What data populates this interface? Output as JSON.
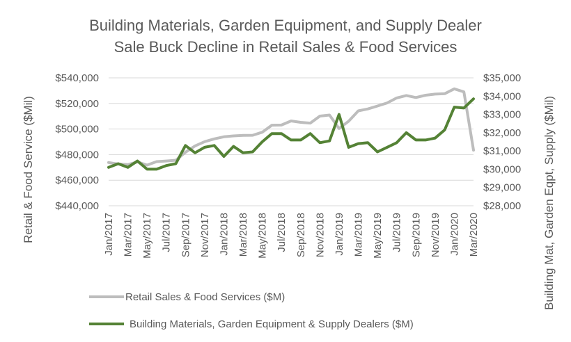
{
  "chart_data": {
    "type": "line",
    "title_line1": "Building Materials, Garden Equipment, and Supply Dealer",
    "title_line2": "Sale Buck Decline in Retail Sales & Food Services",
    "ylabel_left": "Retail & Food Service ($Mil)",
    "ylabel_right": "Building Mat, Garden Eqpt, Supply ($Mil)",
    "y_left_lim": [
      440000,
      540000
    ],
    "y_left_ticks": [
      "$440,000",
      "$460,000",
      "$480,000",
      "$500,000",
      "$520,000",
      "$540,000"
    ],
    "y_right_lim": [
      28000,
      35000
    ],
    "y_right_ticks": [
      "$28,000",
      "$29,000",
      "$30,000",
      "$31,000",
      "$32,000",
      "$33,000",
      "$34,000",
      "$35,000"
    ],
    "x": [
      "Jan/2017",
      "Feb/2017",
      "Mar/2017",
      "Apr/2017",
      "May/2017",
      "Jun/2017",
      "Jul/2017",
      "Aug/2017",
      "Sep/2017",
      "Oct/2017",
      "Nov/2017",
      "Dec/2017",
      "Jan/2018",
      "Feb/2018",
      "Mar/2018",
      "Apr/2018",
      "May/2018",
      "Jun/2018",
      "Jul/2018",
      "Aug/2018",
      "Sep/2018",
      "Oct/2018",
      "Nov/2018",
      "Dec/2018",
      "Jan/2019",
      "Feb/2019",
      "Mar/2019",
      "Apr/2019",
      "May/2019",
      "Jun/2019",
      "Jul/2019",
      "Aug/2019",
      "Sep/2019",
      "Oct/2019",
      "Nov/2019",
      "Dec/2019",
      "Jan/2020",
      "Feb/2020",
      "Mar/2020"
    ],
    "x_tick_labels": [
      "Jan/2017",
      "Mar/2017",
      "May/2017",
      "Jul/2017",
      "Sep/2017",
      "Nov/2017",
      "Jan/2018",
      "Mar/2018",
      "May/2018",
      "Jul/2018",
      "Sep/2018",
      "Nov/2018",
      "Jan/2019",
      "Mar/2019",
      "May/2019",
      "Jul/2019",
      "Sep/2019",
      "Nov/2019",
      "Jan/2020",
      "Mar/2020"
    ],
    "series": [
      {
        "name": "Retail Sales & Food Services ($M)",
        "axis": "left",
        "color": "#bdbdbd",
        "values": [
          473800,
          472600,
          472200,
          474300,
          471800,
          474500,
          475000,
          475600,
          481800,
          486800,
          490100,
          492300,
          493900,
          494600,
          495000,
          495100,
          497500,
          503000,
          503100,
          506300,
          505200,
          504600,
          510100,
          510900,
          500400,
          506100,
          514200,
          515700,
          518000,
          520400,
          524300,
          526200,
          524600,
          526400,
          527300,
          527600,
          531400,
          529000,
          483500
        ]
      },
      {
        "name": "Building Materials, Garden Equipment & Supply Dealers ($M)",
        "axis": "right",
        "color": "#548235",
        "values": [
          30100,
          30300,
          30100,
          30450,
          30000,
          30000,
          30200,
          30300,
          31300,
          30900,
          31200,
          31300,
          30700,
          31250,
          30900,
          30950,
          31500,
          31950,
          31950,
          31600,
          31600,
          31950,
          31450,
          31550,
          33000,
          31200,
          31400,
          31450,
          30950,
          31200,
          31450,
          32000,
          31600,
          31600,
          31700,
          32150,
          33400,
          33350,
          33850
        ]
      }
    ],
    "grid": true,
    "legend_position": "bottom"
  }
}
